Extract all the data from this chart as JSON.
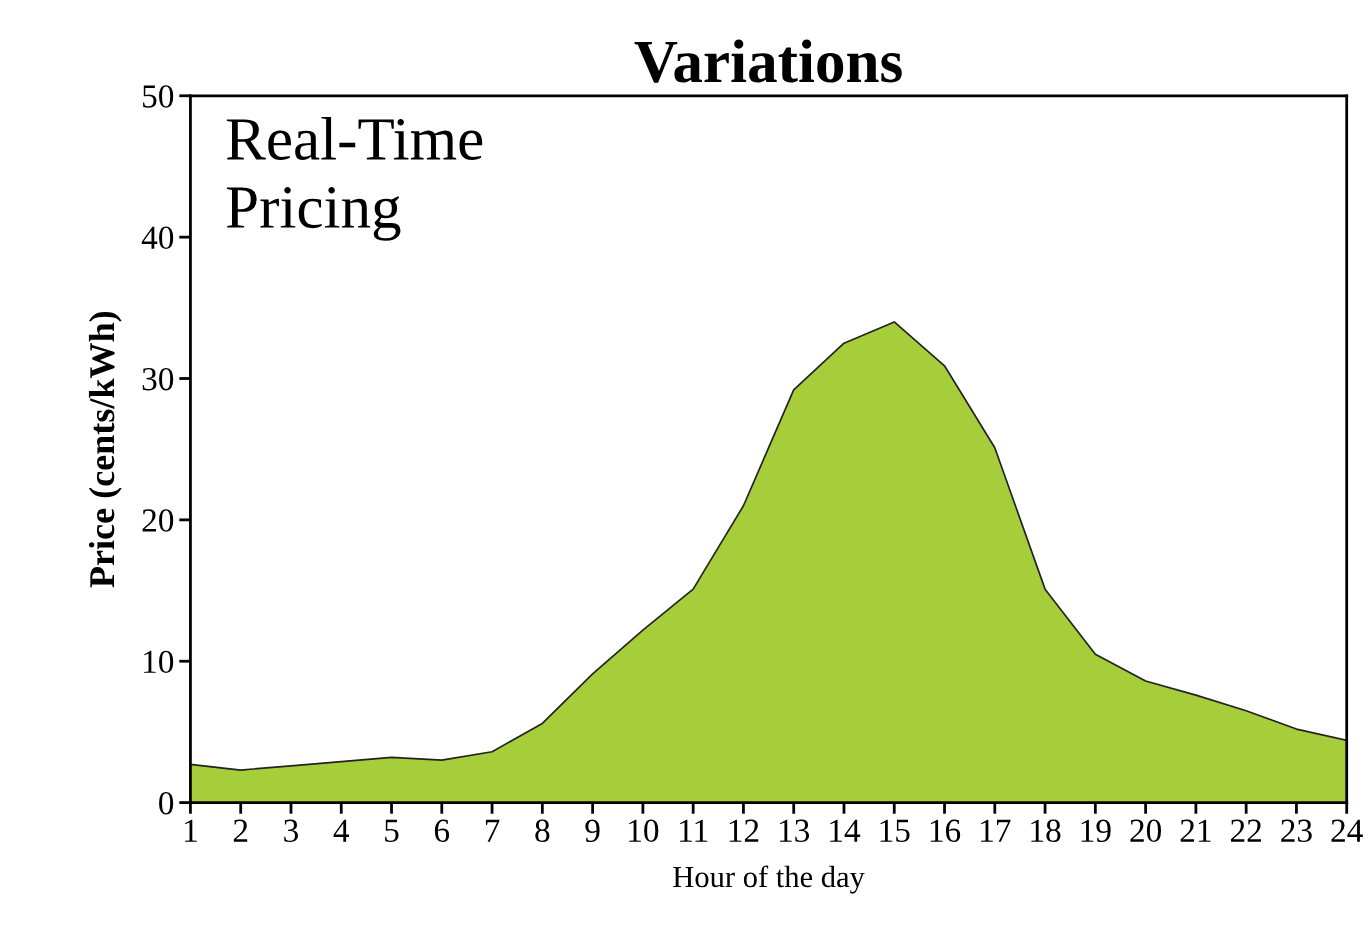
{
  "chart_data": {
    "type": "area",
    "title": "Variations",
    "xlabel": "Hour of the day",
    "ylabel": "Price (cents/kWh)",
    "annotations": [
      "Real-Time\nPricing"
    ],
    "x": [
      1,
      2,
      3,
      4,
      5,
      6,
      7,
      8,
      9,
      10,
      11,
      12,
      13,
      14,
      15,
      16,
      17,
      18,
      19,
      20,
      21,
      22,
      23,
      24
    ],
    "series": [
      {
        "color": "#a6cd3a",
        "values": [
          2.7,
          2.3,
          2.6,
          2.9,
          3.2,
          3.0,
          3.6,
          5.6,
          9.1,
          12.2,
          15.1,
          21,
          29.2,
          32.5,
          34.0,
          30.9,
          25.1,
          15.1,
          10.5,
          8.6,
          7.6,
          6.5,
          5.2,
          4.4
        ]
      }
    ],
    "xlim": [
      1,
      24
    ],
    "xticks": [
      1,
      2,
      3,
      4,
      5,
      6,
      7,
      8,
      9,
      10,
      11,
      12,
      13,
      14,
      15,
      16,
      17,
      18,
      19,
      20,
      21,
      22,
      23,
      24
    ],
    "ylim": [
      0,
      50
    ],
    "yticks": [
      0,
      10,
      20,
      30,
      40,
      50
    ],
    "grid": false,
    "legend": false
  }
}
